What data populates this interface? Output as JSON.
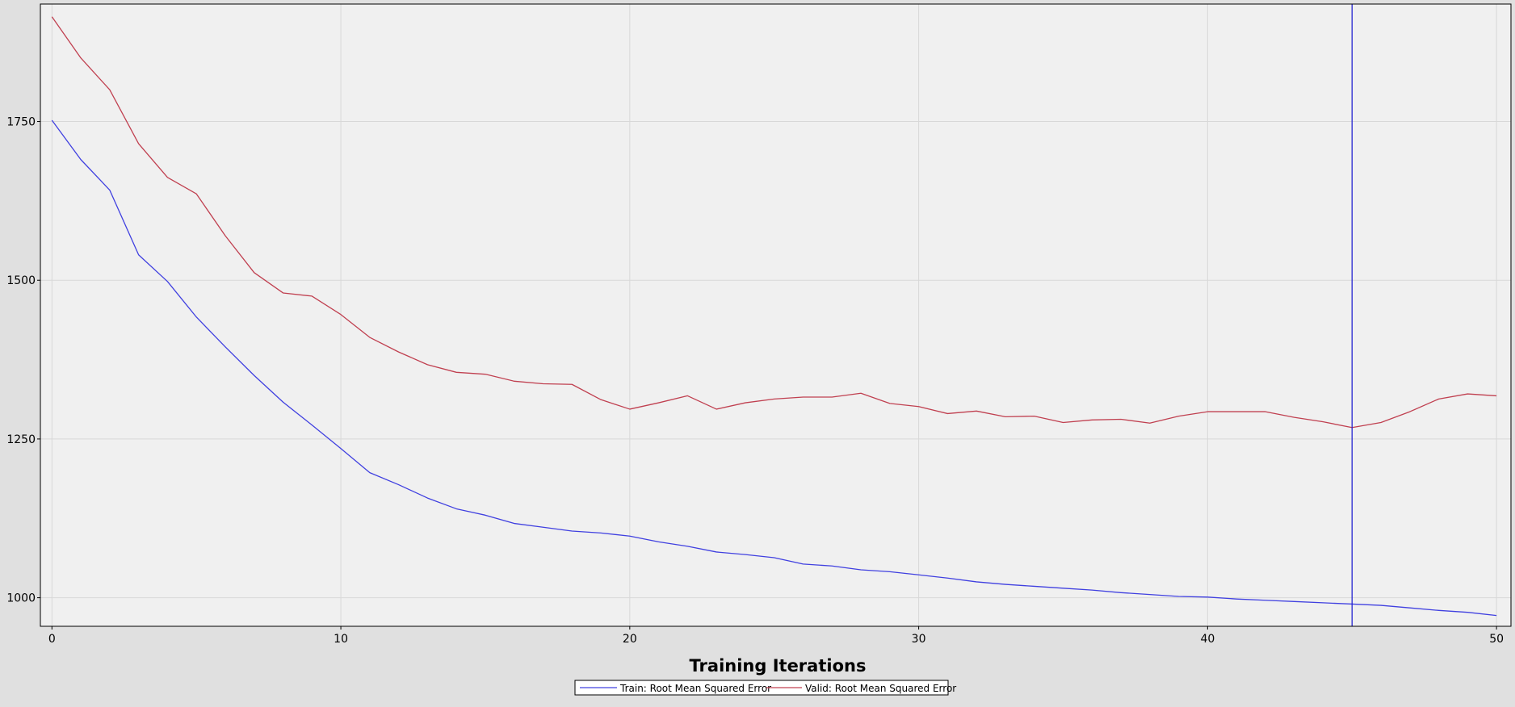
{
  "chart_data": {
    "type": "line",
    "title": "",
    "xlabel": "Training Iterations",
    "ylabel": "",
    "xlim": [
      -0.4,
      50.5
    ],
    "ylim": [
      955,
      1935
    ],
    "x_ticks": [
      0,
      10,
      20,
      30,
      40,
      50
    ],
    "y_ticks": [
      1000,
      1250,
      1500,
      1750
    ],
    "grid": true,
    "legend_position": "bottom-center",
    "marker_x": 45,
    "colors": {
      "plot_background": "#f0f0f0",
      "outer_background": "#e0e0e0",
      "grid": "#d8d8d8",
      "train": "#4040e0",
      "valid": "#c04050",
      "marker": "#2020d0"
    },
    "x": [
      0,
      1,
      2,
      3,
      4,
      5,
      6,
      7,
      8,
      9,
      10,
      11,
      12,
      13,
      14,
      15,
      16,
      17,
      18,
      19,
      20,
      21,
      22,
      23,
      24,
      25,
      26,
      27,
      28,
      29,
      30,
      31,
      32,
      33,
      34,
      35,
      36,
      37,
      38,
      39,
      40,
      41,
      42,
      43,
      44,
      45,
      46,
      47,
      48,
      49,
      50
    ],
    "series": [
      {
        "name": "Train: Root Mean Squared Error",
        "values": [
          1752,
          1690,
          1642,
          1540,
          1498,
          1442,
          1395,
          1350,
          1308,
          1272,
          1235,
          1197,
          1178,
          1157,
          1140,
          1130,
          1117,
          1111,
          1105,
          1102,
          1097,
          1088,
          1081,
          1072,
          1068,
          1063,
          1053,
          1050,
          1044,
          1041,
          1036,
          1031,
          1025,
          1021,
          1018,
          1015,
          1012,
          1008,
          1005,
          1002,
          1001,
          998,
          996,
          994,
          992,
          990,
          988,
          984,
          980,
          977,
          972
        ]
      },
      {
        "name": "Valid: Root Mean Squared Error",
        "values": [
          1915,
          1850,
          1800,
          1715,
          1662,
          1636,
          1570,
          1512,
          1480,
          1475,
          1446,
          1410,
          1387,
          1367,
          1355,
          1352,
          1341,
          1337,
          1336,
          1312,
          1297,
          1307,
          1318,
          1297,
          1307,
          1313,
          1316,
          1316,
          1322,
          1306,
          1301,
          1290,
          1294,
          1285,
          1286,
          1276,
          1280,
          1281,
          1275,
          1286,
          1293,
          1293,
          1293,
          1284,
          1277,
          1268,
          1276,
          1293,
          1313,
          1321,
          1318
        ]
      }
    ]
  }
}
